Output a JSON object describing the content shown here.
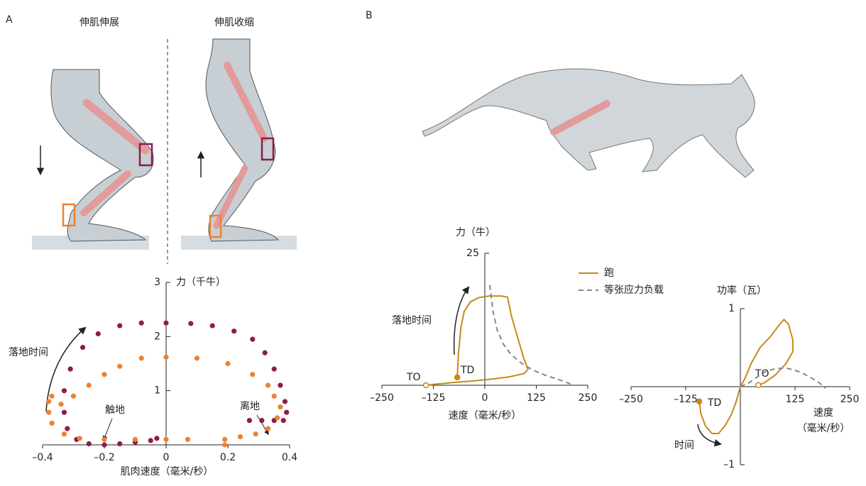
{
  "panel_labels": [
    "A",
    "B"
  ],
  "leg_labels": [
    "伸肌伸展",
    "伸肌收缩"
  ],
  "chart_data": [
    {
      "type": "scatter",
      "y_label": "力（千牛）",
      "x_label": "肌肉速度（毫米/秒）",
      "annotations": [
        "落地时间",
        "触地",
        "离地"
      ],
      "xlim": [
        -0.4,
        0.4
      ],
      "ylim": [
        0,
        3
      ],
      "xticks": [
        {
          "value": -0.4,
          "label": "–0.4"
        },
        {
          "value": -0.2,
          "label": "–0.2"
        },
        0,
        0.2,
        0.4
      ],
      "yticks": [
        1,
        2,
        3
      ],
      "series": [
        {
          "color": "#8b1d4b",
          "x": [
            0.27,
            0.31,
            0.35,
            0.38,
            0.39,
            0.385,
            0.37,
            0.35,
            0.32,
            0.28,
            0.22,
            0.15,
            0.08,
            0,
            -0.08,
            -0.15,
            -0.22,
            -0.27,
            -0.31,
            -0.33,
            -0.33,
            -0.32,
            -0.29,
            -0.25,
            -0.2,
            -0.15,
            -0.1,
            -0.05,
            -0.03
          ],
          "y": [
            0.45,
            0.45,
            0.45,
            0.45,
            0.6,
            0.8,
            1.1,
            1.4,
            1.7,
            1.95,
            2.1,
            2.2,
            2.24,
            2.25,
            2.25,
            2.2,
            2.05,
            1.8,
            1.4,
            1.0,
            0.6,
            0.3,
            0.1,
            0.02,
            0,
            0.02,
            0.05,
            0.08,
            0.12
          ]
        },
        {
          "color": "#f08030",
          "x": [
            0.19,
            0.19,
            0.24,
            0.29,
            0.33,
            0.36,
            0.37,
            0.35,
            0.33,
            0.28,
            0.2,
            0.1,
            0,
            -0.08,
            -0.15,
            -0.2,
            -0.25,
            -0.3,
            -0.34,
            -0.37,
            -0.38,
            -0.38,
            -0.37,
            -0.33,
            -0.28,
            -0.2,
            -0.1,
            0,
            0.07
          ],
          "y": [
            0,
            0.1,
            0.15,
            0.2,
            0.3,
            0.5,
            0.7,
            0.9,
            1.1,
            1.3,
            1.5,
            1.6,
            1.62,
            1.6,
            1.45,
            1.3,
            1.1,
            0.9,
            0.75,
            0.9,
            0.8,
            0.6,
            0.4,
            0.2,
            0.12,
            0.1,
            0.1,
            0.1,
            0.1
          ]
        }
      ]
    },
    {
      "type": "line",
      "y_label": "力（牛）",
      "x_label": "速度（毫米/秒）",
      "annotations": [
        "落地时间",
        "TO",
        "TD"
      ],
      "xlim": [
        -250,
        250
      ],
      "ylim": [
        0,
        25
      ],
      "xticks": [
        {
          "value": -250,
          "label": "–250"
        },
        {
          "value": -125,
          "label": "–125"
        },
        0,
        125,
        250
      ],
      "yticks": [
        25
      ],
      "series": [
        {
          "name": "跑",
          "color": "#c68a1a",
          "endpoints": [
            "filled",
            "open"
          ],
          "x": [
            -67,
            -64,
            -58,
            -50,
            -35,
            -15,
            10,
            40,
            55,
            65,
            80,
            95,
            105,
            95,
            60,
            20,
            -30,
            -80,
            -120,
            -143
          ],
          "y": [
            1.5,
            6,
            11,
            14,
            15.8,
            16.6,
            16.9,
            16.9,
            16.7,
            13,
            9,
            5,
            3,
            2.2,
            1.6,
            1.2,
            0.8,
            0.5,
            0.2,
            0
          ]
        },
        {
          "name": "等张应力负载",
          "color": "#888888",
          "dashed": true,
          "x": [
            12,
            20,
            30,
            45,
            60,
            80,
            100,
            125,
            150,
            175,
            200,
            215
          ],
          "y": [
            19,
            14,
            10.5,
            7.8,
            6.2,
            4.7,
            3.6,
            2.6,
            1.8,
            1.2,
            0.5,
            0
          ]
        }
      ]
    },
    {
      "type": "line",
      "y_label": "功率（瓦）",
      "x_label": [
        "速度",
        "（毫米/秒）"
      ],
      "annotations": [
        "时间",
        "TO",
        "TD"
      ],
      "xlim": [
        -250,
        250
      ],
      "ylim": [
        -1,
        1
      ],
      "xticks": [
        {
          "value": -250,
          "label": "–250"
        },
        {
          "value": -125,
          "label": "–125"
        },
        125,
        250
      ],
      "yticks": [
        1,
        {
          "value": -1,
          "label": "–1"
        }
      ],
      "series": [
        {
          "color": "#c68a1a",
          "endpoints": [
            "filled",
            "open"
          ],
          "x": [
            -94,
            -90,
            -80,
            -65,
            -50,
            -35,
            -20,
            -10,
            0,
            10,
            25,
            45,
            70,
            90,
            100,
            110,
            120,
            120,
            105,
            80,
            55,
            41
          ],
          "y": [
            -0.19,
            -0.35,
            -0.5,
            -0.6,
            -0.6,
            -0.5,
            -0.35,
            -0.2,
            0,
            0.1,
            0.3,
            0.5,
            0.65,
            0.8,
            0.86,
            0.8,
            0.6,
            0.45,
            0.3,
            0.15,
            0.05,
            0.02
          ]
        },
        {
          "color": "#888888",
          "dashed": true,
          "x": [
            0,
            20,
            40,
            60,
            80,
            100,
            120,
            140,
            160,
            180,
            195
          ],
          "y": [
            0,
            0.05,
            0.13,
            0.2,
            0.23,
            0.24,
            0.22,
            0.18,
            0.12,
            0.05,
            -0.02
          ]
        }
      ]
    }
  ]
}
